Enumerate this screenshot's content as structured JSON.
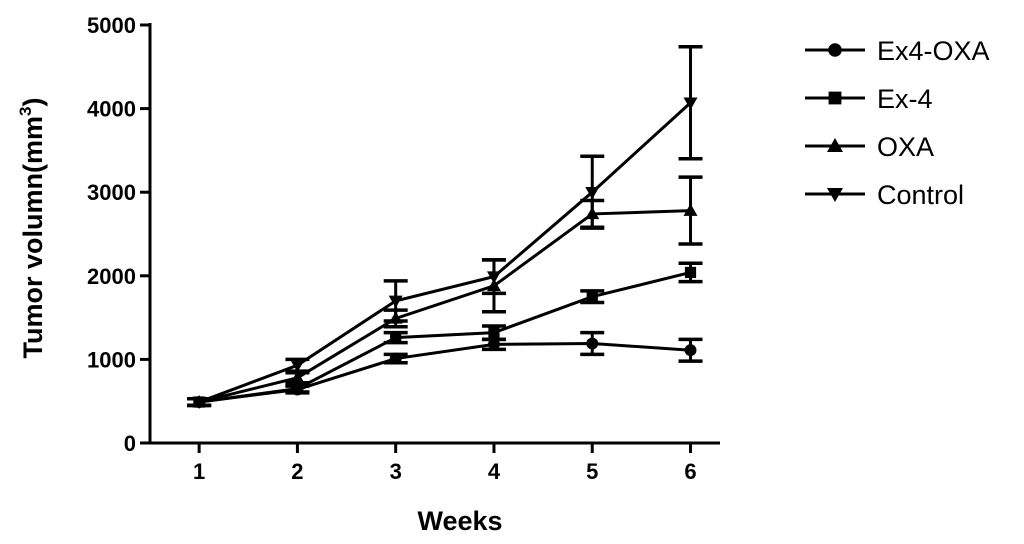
{
  "chart_data": {
    "type": "line",
    "xlabel": "Weeks",
    "ylabel": "Tumor volumn(mm",
    "ylabel_superscript": "3",
    "ylabel_close": ")",
    "x": [
      1,
      2,
      3,
      4,
      5,
      6
    ],
    "xticks": [
      "1",
      "2",
      "3",
      "4",
      "5",
      "6"
    ],
    "yticks": [
      "0",
      "1000",
      "2000",
      "3000",
      "4000",
      "5000"
    ],
    "ylim": [
      0,
      5000
    ],
    "xlim": [
      0.5,
      6.3
    ],
    "legend_position": "top-right",
    "series": [
      {
        "name": "Ex4-OXA",
        "marker": "circle",
        "values": [
          490,
          640,
          1010,
          1180,
          1190,
          1110
        ],
        "errors": [
          40,
          40,
          50,
          60,
          130,
          130
        ]
      },
      {
        "name": "Ex-4",
        "marker": "square",
        "values": [
          490,
          650,
          1260,
          1320,
          1750,
          2040
        ],
        "errors": [
          40,
          40,
          60,
          80,
          70,
          110
        ]
      },
      {
        "name": "OXA",
        "marker": "triangle-up",
        "values": [
          490,
          780,
          1490,
          1880,
          2740,
          2780
        ],
        "errors": [
          40,
          60,
          100,
          310,
          160,
          400
        ]
      },
      {
        "name": "Control",
        "marker": "triangle-down",
        "values": [
          490,
          930,
          1700,
          1990,
          3000,
          4070
        ],
        "errors": [
          40,
          70,
          240,
          200,
          430,
          670
        ]
      }
    ]
  }
}
